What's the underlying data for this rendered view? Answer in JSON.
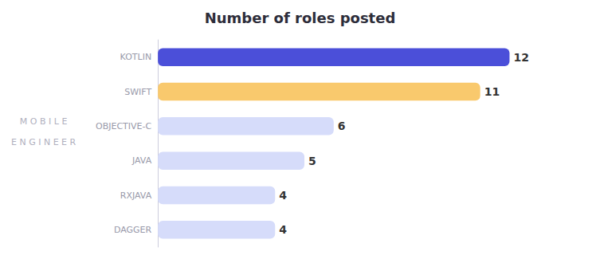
{
  "chart_data": {
    "type": "bar",
    "orientation": "horizontal",
    "title": "Number of roles posted",
    "ylabel": "M O B I L E\nE N G I N E E R",
    "categories": [
      "KOTLIN",
      "SWIFT",
      "OBJECTIVE-C",
      "JAVA",
      "RXJAVA",
      "DAGGER"
    ],
    "values": [
      12,
      11,
      6,
      5,
      4,
      4
    ],
    "colors": [
      "#4B4FD9",
      "#F9C96D",
      "#D6DCFA",
      "#D6DCFA",
      "#D6DCFA",
      "#D6DCFA"
    ],
    "xlim": [
      0,
      14
    ],
    "data_labels": true,
    "tick_labels": "y",
    "grid": false
  }
}
